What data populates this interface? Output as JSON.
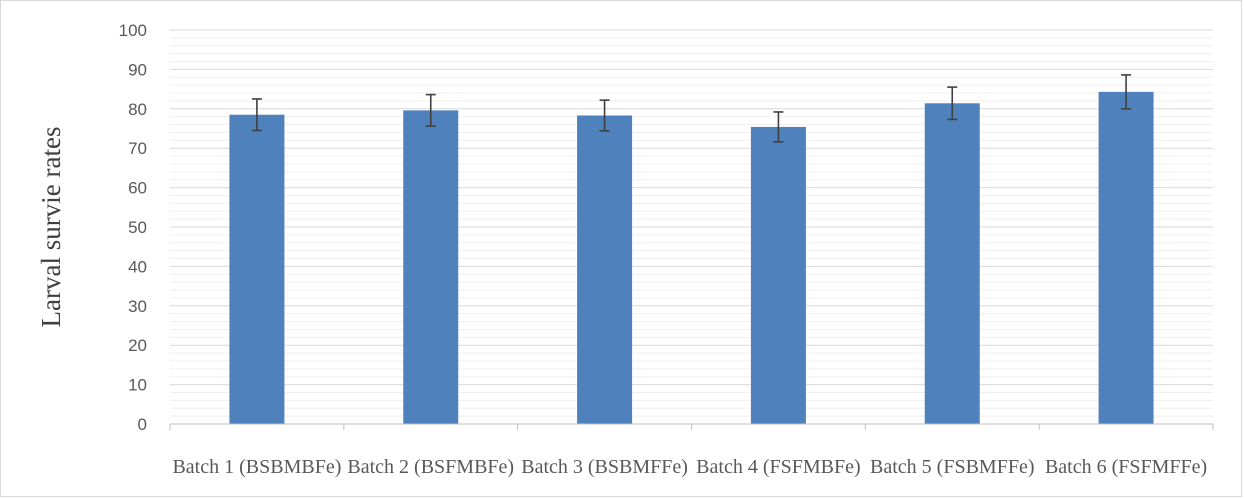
{
  "chart_data": {
    "type": "bar",
    "title": "",
    "xlabel": "",
    "ylabel": "Larval survie rates",
    "ylim": [
      0,
      100
    ],
    "ytick_step": 10,
    "grid": true,
    "categories": [
      "Batch 1 (BSBMBFe)",
      "Batch 2 (BSFMBFe)",
      "Batch 3 (BSBMFFe)",
      "Batch 4 (FSFMBFe)",
      "Batch 5 (FSBMFFe)",
      "Batch 6 (FSFMFFe)"
    ],
    "values": [
      78.5,
      79.6,
      78.3,
      75.4,
      81.4,
      84.3
    ],
    "error": [
      4.0,
      4.0,
      3.9,
      3.8,
      4.1,
      4.3
    ],
    "bar_color": "#4F81BD",
    "errorbar_color": "#404040",
    "grid_color": "#d9d9d9"
  }
}
